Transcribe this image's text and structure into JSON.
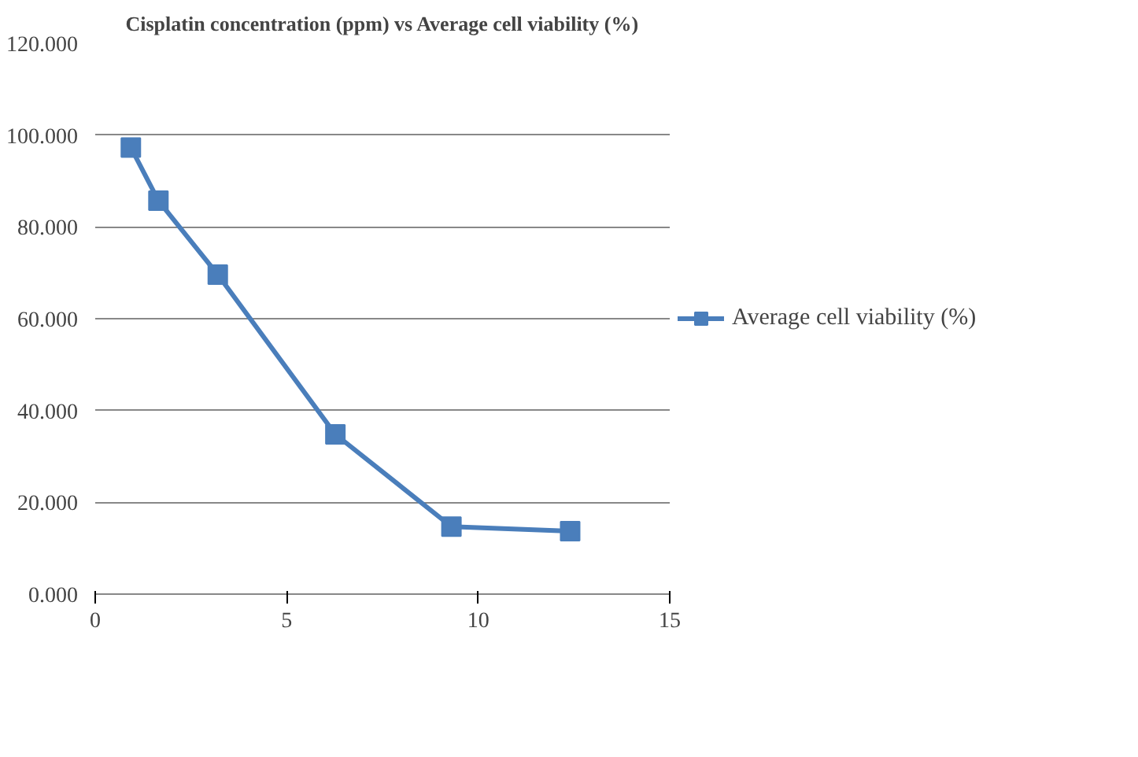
{
  "chart_data": {
    "type": "line",
    "title": "Cisplatin concentration (ppm) vs Average cell viability (%)",
    "x": [
      0.93,
      1.65,
      3.2,
      6.27,
      9.3,
      12.4
    ],
    "series": [
      {
        "name": "Average cell viability (%)",
        "color": "#4a7ebb",
        "values": [
          97.3,
          85.7,
          69.6,
          34.8,
          14.7,
          13.7
        ]
      }
    ],
    "xlim": [
      0,
      15
    ],
    "xticks": [
      0,
      5,
      10,
      15
    ],
    "ylim": [
      0,
      120
    ],
    "yticks": [
      {
        "value": 0,
        "label": "0.000"
      },
      {
        "value": 20,
        "label": "20.000"
      },
      {
        "value": 40,
        "label": "40.000"
      },
      {
        "value": 60,
        "label": "60.000"
      },
      {
        "value": 80,
        "label": "80.000"
      },
      {
        "value": 100,
        "label": "100.000"
      },
      {
        "value": 120,
        "label": "120.000"
      }
    ],
    "grid": "y",
    "legend": "right",
    "marker": "square",
    "line_style": "solid"
  }
}
